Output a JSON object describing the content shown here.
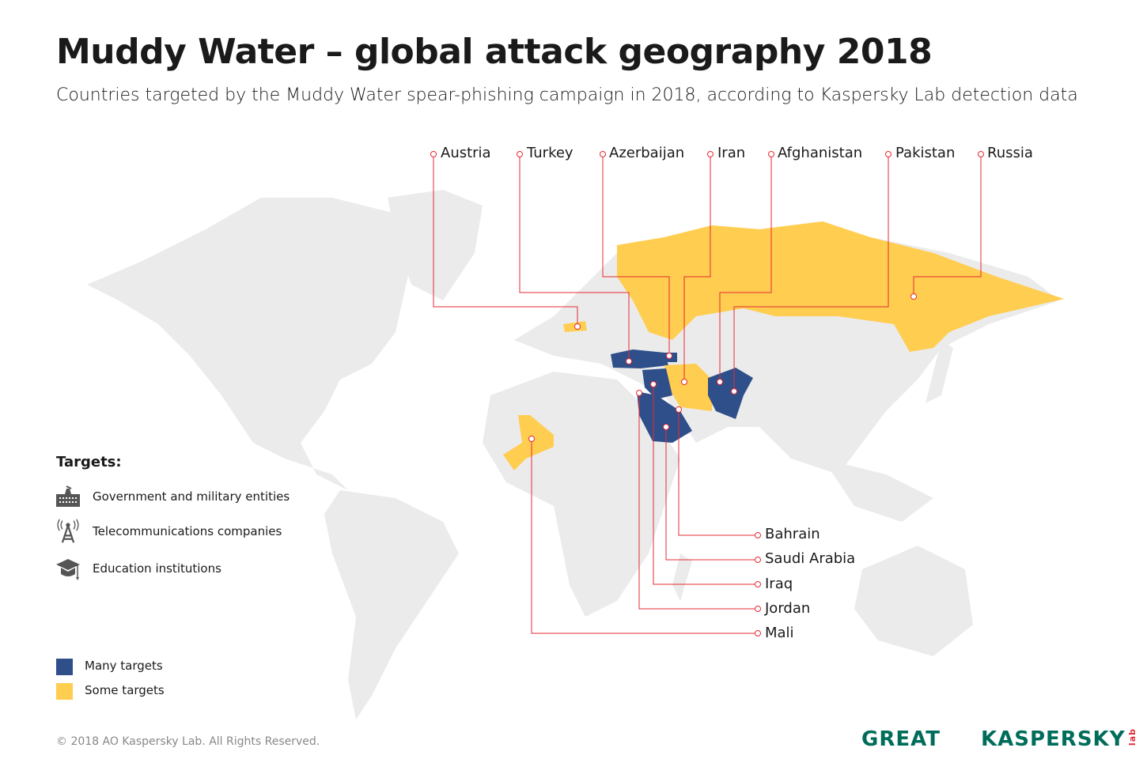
{
  "title": "Muddy Water – global attack geography 2018",
  "subtitle": "Countries targeted by the Muddy Water spear-phishing campaign in 2018, according to Kaspersky Lab detection data",
  "colors": {
    "many": "#2f4f8a",
    "some": "#ffcd4f",
    "land": "#ebebeb",
    "leader": "#e42b35",
    "brand": "#006d5b"
  },
  "top_labels": [
    "Austria",
    "Turkey",
    "Azerbaijan",
    "Iran",
    "Afghanistan",
    "Pakistan",
    "Russia"
  ],
  "bottom_labels": [
    "Bahrain",
    "Saudi Arabia",
    "Iraq",
    "Jordan",
    "Mali"
  ],
  "countries": {
    "many": [
      "Turkey",
      "Azerbaijan",
      "Afghanistan",
      "Pakistan",
      "Iraq",
      "Jordan",
      "Saudi Arabia",
      "Bahrain"
    ],
    "some": [
      "Austria",
      "Iran",
      "Russia",
      "Mali"
    ]
  },
  "legend": {
    "title": "Targets:",
    "items": [
      {
        "icon": "government-building-icon",
        "label": "Government and military entities"
      },
      {
        "icon": "telecom-tower-icon",
        "label": "Telecommunications companies"
      },
      {
        "icon": "graduation-cap-icon",
        "label": "Education institutions"
      }
    ],
    "scale": [
      {
        "label": "Many targets"
      },
      {
        "label": "Some targets"
      }
    ]
  },
  "footer": {
    "copyright": "© 2018 AO Kaspersky Lab. All Rights Reserved.",
    "logo_great": "GREAT",
    "logo_kaspersky": "KASPERSKY",
    "logo_lab": "lab"
  }
}
